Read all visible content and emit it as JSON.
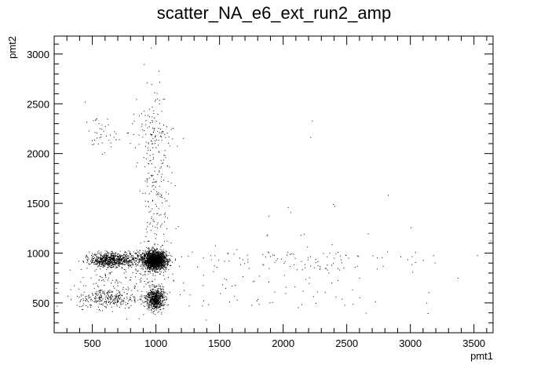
{
  "chart_data": {
    "type": "scatter",
    "title": "scatter_NA_e6_ext_run2_amp",
    "xlabel": "pmt1",
    "ylabel": "pmt2",
    "xlim": [
      200,
      3650
    ],
    "ylim": [
      200,
      3180
    ],
    "x_ticks": [
      500,
      1000,
      1500,
      2000,
      2500,
      3000,
      3500
    ],
    "y_ticks": [
      500,
      1000,
      1500,
      2000,
      2500,
      3000
    ],
    "grid": false,
    "legend": "none",
    "marker_color": "#000000",
    "clusters": [
      {
        "x": 990,
        "y": 930,
        "sx": 45,
        "sy": 45,
        "n": 1800
      },
      {
        "x": 990,
        "y": 545,
        "sx": 35,
        "sy": 55,
        "n": 650
      },
      {
        "x": 620,
        "y": 935,
        "sx": 70,
        "sy": 35,
        "n": 550
      },
      {
        "x": 780,
        "y": 935,
        "sx": 110,
        "sy": 40,
        "n": 320
      },
      {
        "x": 620,
        "y": 545,
        "sx": 120,
        "sy": 50,
        "n": 260
      },
      {
        "x": 990,
        "y": 1700,
        "sx": 60,
        "sy": 550,
        "n": 230
      },
      {
        "x": 560,
        "y": 2200,
        "sx": 60,
        "sy": 90,
        "n": 40
      },
      {
        "x": 960,
        "y": 2200,
        "sx": 90,
        "sy": 100,
        "n": 60
      },
      {
        "x": 1900,
        "y": 930,
        "sx": 650,
        "sy": 70,
        "n": 120
      },
      {
        "x": 1700,
        "y": 600,
        "sx": 600,
        "sy": 120,
        "n": 70
      },
      {
        "x": 2100,
        "y": 1400,
        "sx": 700,
        "sy": 600,
        "n": 30
      },
      {
        "x": 750,
        "y": 740,
        "sx": 180,
        "sy": 130,
        "n": 160
      }
    ]
  }
}
